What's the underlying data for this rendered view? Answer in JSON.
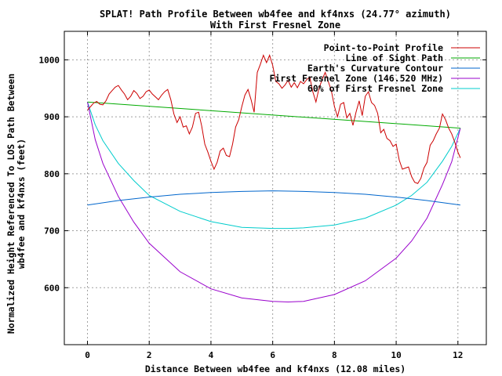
{
  "chart_data": {
    "type": "line",
    "title": "SPLAT! Path Profile Between wb4fee and kf4nxs (24.77° azimuth)",
    "subtitle": "With First Fresnel Zone",
    "xlabel": "Distance Between wb4fee and kf4nxs (12.08 miles)",
    "ylabel_line1": "Normalized Height Referenced To LOS Path Between",
    "ylabel_line2": "wb4fee and kf4nxs (feet)",
    "xlim": [
      -0.75,
      12.92
    ],
    "ylim": [
      500,
      1050
    ],
    "xticks": [
      0,
      2,
      4,
      6,
      8,
      10,
      12
    ],
    "yticks": [
      600,
      700,
      800,
      900,
      1000
    ],
    "grid": true,
    "legend_position": "top-right",
    "series": [
      {
        "name": "Point-to-Point Profile",
        "color": "#cc0000",
        "x": [
          0.0,
          0.1,
          0.2,
          0.3,
          0.4,
          0.5,
          0.6,
          0.7,
          0.8,
          0.9,
          1.0,
          1.1,
          1.2,
          1.3,
          1.4,
          1.5,
          1.6,
          1.7,
          1.8,
          1.9,
          2.0,
          2.1,
          2.2,
          2.3,
          2.4,
          2.5,
          2.6,
          2.7,
          2.8,
          2.9,
          3.0,
          3.1,
          3.2,
          3.3,
          3.4,
          3.5,
          3.6,
          3.7,
          3.8,
          3.9,
          4.0,
          4.1,
          4.2,
          4.3,
          4.4,
          4.5,
          4.6,
          4.7,
          4.8,
          4.9,
          5.0,
          5.1,
          5.2,
          5.3,
          5.4,
          5.5,
          5.6,
          5.7,
          5.8,
          5.9,
          6.0,
          6.1,
          6.2,
          6.3,
          6.4,
          6.5,
          6.6,
          6.7,
          6.8,
          6.9,
          7.0,
          7.1,
          7.2,
          7.3,
          7.4,
          7.5,
          7.6,
          7.7,
          7.8,
          7.9,
          8.0,
          8.1,
          8.2,
          8.3,
          8.4,
          8.5,
          8.6,
          8.7,
          8.8,
          8.9,
          9.0,
          9.1,
          9.2,
          9.3,
          9.4,
          9.5,
          9.6,
          9.7,
          9.8,
          9.9,
          10.0,
          10.1,
          10.2,
          10.3,
          10.4,
          10.5,
          10.6,
          10.7,
          10.8,
          10.9,
          11.0,
          11.1,
          11.2,
          11.3,
          11.4,
          11.5,
          11.6,
          11.7,
          11.8,
          11.9,
          12.0,
          12.08
        ],
        "values": [
          912,
          918,
          924,
          927,
          922,
          921,
          928,
          940,
          946,
          952,
          955,
          947,
          940,
          930,
          936,
          946,
          941,
          932,
          936,
          944,
          947,
          940,
          935,
          930,
          938,
          944,
          948,
          930,
          905,
          890,
          900,
          882,
          884,
          870,
          882,
          906,
          908,
          884,
          852,
          838,
          822,
          808,
          820,
          840,
          845,
          832,
          830,
          852,
          882,
          895,
          918,
          938,
          948,
          930,
          908,
          978,
          992,
          1008,
          995,
          1008,
          990,
          962,
          958,
          950,
          956,
          964,
          952,
          960,
          951,
          962,
          958,
          965,
          970,
          944,
          926,
          950,
          965,
          978,
          962,
          946,
          918,
          900,
          922,
          925,
          898,
          906,
          885,
          908,
          928,
          902,
          936,
          944,
          925,
          920,
          906,
          872,
          878,
          862,
          858,
          848,
          852,
          824,
          808,
          810,
          812,
          795,
          785,
          783,
          792,
          810,
          820,
          850,
          858,
          870,
          880,
          905,
          895,
          880,
          870,
          855,
          838,
          828
        ]
      },
      {
        "name": "Line of Sight Path",
        "color": "#00aa00",
        "x": [
          0,
          12.08
        ],
        "values": [
          926,
          880
        ]
      },
      {
        "name": "Earth's Curvature Contour",
        "color": "#0066cc",
        "x": [
          0,
          1,
          2,
          3,
          4,
          5,
          6,
          7,
          8,
          9,
          10,
          11,
          12.08
        ],
        "values": [
          745,
          753,
          759,
          764,
          767,
          769,
          770,
          769,
          767,
          764,
          759,
          753,
          745
        ]
      },
      {
        "name": "First Fresnel Zone (146.520 MHz)",
        "color": "#9900cc",
        "x": [
          0,
          0.25,
          0.5,
          1,
          1.5,
          2,
          3,
          4,
          5,
          6,
          6.5,
          7,
          8,
          9,
          10,
          10.5,
          11,
          11.5,
          11.8,
          12.08
        ],
        "values": [
          926,
          860,
          818,
          760,
          715,
          678,
          628,
          598,
          582,
          576,
          575,
          576,
          588,
          612,
          652,
          682,
          722,
          781,
          821,
          880
        ]
      },
      {
        "name": "60% of First Fresnel Zone",
        "color": "#00cccc",
        "x": [
          0,
          0.25,
          0.5,
          1,
          1.5,
          2,
          3,
          4,
          5,
          6,
          6.5,
          7,
          8,
          9,
          10,
          10.5,
          11,
          11.5,
          11.8,
          12.08
        ],
        "values": [
          926,
          886,
          858,
          818,
          788,
          762,
          734,
          716,
          706,
          704,
          704,
          705,
          710,
          722,
          745,
          762,
          785,
          822,
          848,
          880
        ]
      }
    ]
  }
}
